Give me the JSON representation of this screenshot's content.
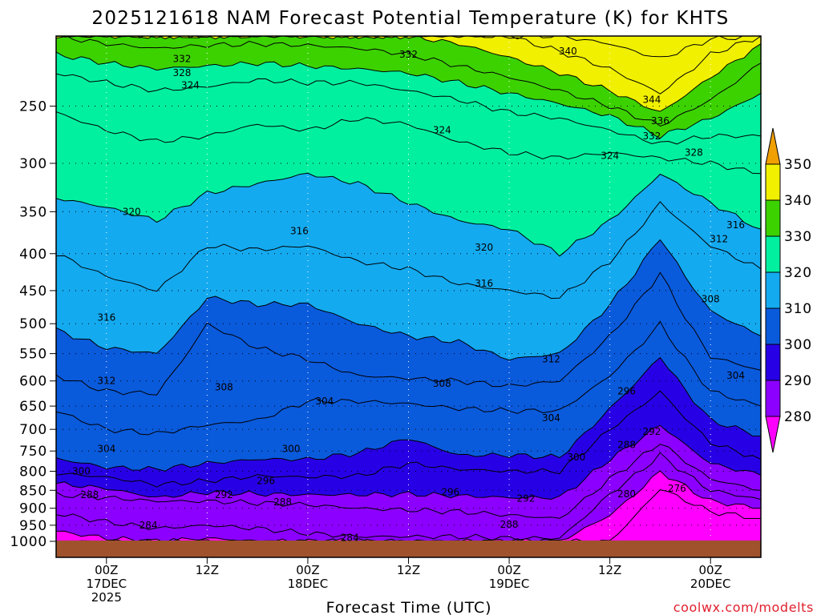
{
  "chart_data": {
    "type": "heatmap",
    "title": "2025121618 NAM Forecast Potential Temperature (K) for KHTS",
    "xlabel": "Forecast Time (UTC)",
    "ylabel": "",
    "watermark": "coolwx.com/modelts",
    "y_scale": "log-pressure",
    "ylim": [
      1000,
      200
    ],
    "yticks": [
      "250",
      "300",
      "350",
      "400",
      "450",
      "500",
      "550",
      "600",
      "650",
      "700",
      "750",
      "800",
      "850",
      "900",
      "950",
      "1000"
    ],
    "x_ticks": [
      {
        "hour": 6,
        "label1": "00Z",
        "label2": "17DEC",
        "label3": "2025"
      },
      {
        "hour": 18,
        "label1": "12Z",
        "label2": "",
        "label3": ""
      },
      {
        "hour": 30,
        "label1": "00Z",
        "label2": "18DEC",
        "label3": ""
      },
      {
        "hour": 42,
        "label1": "12Z",
        "label2": "",
        "label3": ""
      },
      {
        "hour": 54,
        "label1": "00Z",
        "label2": "19DEC",
        "label3": ""
      },
      {
        "hour": 66,
        "label1": "12Z",
        "label2": "",
        "label3": ""
      },
      {
        "hour": 78,
        "label1": "00Z",
        "label2": "20DEC",
        "label3": ""
      }
    ],
    "xlim": [
      0,
      84
    ],
    "colorbar": {
      "labels": [
        "280",
        "290",
        "300",
        "310",
        "320",
        "330",
        "340",
        "350"
      ],
      "bands": [
        {
          "from": 270,
          "to": 280,
          "color": "#ff00ff"
        },
        {
          "from": 280,
          "to": 290,
          "color": "#8c00ff"
        },
        {
          "from": 290,
          "to": 300,
          "color": "#2800e6"
        },
        {
          "from": 300,
          "to": 310,
          "color": "#0a5adc"
        },
        {
          "from": 310,
          "to": 320,
          "color": "#14aaf0"
        },
        {
          "from": 320,
          "to": 330,
          "color": "#00f0a0"
        },
        {
          "from": 330,
          "to": 340,
          "color": "#3cd200"
        },
        {
          "from": 340,
          "to": 350,
          "color": "#f0f000"
        },
        {
          "from": 350,
          "to": 360,
          "color": "#f0a000"
        }
      ]
    },
    "contour_interval_K": 4,
    "ground_color": "#a0522d",
    "theta_profile_hours": [
      0,
      6,
      12,
      18,
      24,
      30,
      36,
      42,
      48,
      54,
      60,
      66,
      72,
      78,
      84
    ],
    "theta_contours": [
      {
        "level": 276,
        "p": [
          1000,
          1000,
          1000,
          1000,
          1000,
          1000,
          1000,
          1000,
          1000,
          1000,
          1000,
          1000,
          845,
          910,
          930
        ]
      },
      {
        "level": 280,
        "p": [
          968,
          990,
          1000,
          990,
          1000,
          1000,
          1000,
          1000,
          1000,
          1000,
          1000,
          920,
          800,
          880,
          900
        ]
      },
      {
        "level": 284,
        "p": [
          915,
          940,
          960,
          950,
          960,
          975,
          985,
          985,
          985,
          990,
          990,
          860,
          760,
          850,
          875
        ]
      },
      {
        "level": 288,
        "p": [
          862,
          870,
          880,
          880,
          885,
          890,
          900,
          905,
          910,
          920,
          930,
          820,
          730,
          820,
          850
        ]
      },
      {
        "level": 292,
        "p": [
          832,
          845,
          870,
          855,
          860,
          862,
          862,
          860,
          865,
          870,
          870,
          770,
          690,
          780,
          810
        ]
      },
      {
        "level": 296,
        "p": [
          805,
          815,
          835,
          825,
          812,
          815,
          812,
          780,
          795,
          800,
          800,
          700,
          620,
          730,
          770
        ]
      },
      {
        "level": 300,
        "p": [
          768,
          790,
          795,
          780,
          770,
          770,
          755,
          720,
          760,
          760,
          765,
          655,
          555,
          680,
          715
        ]
      },
      {
        "level": 304,
        "p": [
          660,
          700,
          710,
          690,
          680,
          640,
          640,
          645,
          655,
          660,
          660,
          590,
          500,
          620,
          650
        ]
      },
      {
        "level": 308,
        "p": [
          590,
          620,
          625,
          500,
          540,
          560,
          590,
          595,
          600,
          610,
          600,
          520,
          425,
          555,
          580
        ]
      },
      {
        "level": 312,
        "p": [
          510,
          540,
          550,
          460,
          470,
          470,
          500,
          520,
          530,
          560,
          550,
          470,
          380,
          480,
          520
        ]
      },
      {
        "level": 316,
        "p": [
          400,
          430,
          450,
          390,
          395,
          390,
          410,
          420,
          440,
          450,
          460,
          410,
          340,
          390,
          420
        ]
      },
      {
        "level": 320,
        "p": [
          335,
          345,
          360,
          330,
          320,
          310,
          320,
          340,
          360,
          370,
          400,
          360,
          310,
          340,
          370
        ]
      },
      {
        "level": 324,
        "p": [
          255,
          270,
          280,
          275,
          265,
          270,
          260,
          265,
          280,
          290,
          295,
          290,
          295,
          300,
          310
        ]
      },
      {
        "level": 328,
        "p": [
          225,
          232,
          238,
          235,
          230,
          232,
          232,
          238,
          245,
          255,
          260,
          270,
          282,
          275,
          275
        ]
      },
      {
        "level": 332,
        "p": [
          212,
          218,
          222,
          220,
          218,
          220,
          222,
          225,
          232,
          240,
          248,
          258,
          275,
          260,
          240
        ]
      },
      {
        "level": 336,
        "p": [
          200,
          205,
          208,
          206,
          205,
          206,
          208,
          212,
          220,
          228,
          238,
          250,
          266,
          245,
          218
        ]
      },
      {
        "level": 340,
        "p": [
          200,
          200,
          200,
          200,
          200,
          200,
          200,
          200,
          205,
          214,
          225,
          238,
          255,
          228,
          205
        ]
      },
      {
        "level": 344,
        "p": [
          200,
          200,
          200,
          200,
          200,
          200,
          200,
          200,
          200,
          200,
          210,
          222,
          240,
          212,
          200
        ]
      },
      {
        "level": 348,
        "p": [
          200,
          200,
          200,
          200,
          200,
          200,
          200,
          200,
          200,
          200,
          200,
          205,
          215,
          202,
          200
        ]
      }
    ],
    "contour_labels": [
      {
        "text": "332",
        "hour": 15,
        "p": 215
      },
      {
        "text": "328",
        "hour": 15,
        "p": 225
      },
      {
        "text": "324",
        "hour": 16,
        "p": 234
      },
      {
        "text": "332",
        "hour": 42,
        "p": 212
      },
      {
        "text": "340",
        "hour": 61,
        "p": 210
      },
      {
        "text": "344",
        "hour": 71,
        "p": 245
      },
      {
        "text": "336",
        "hour": 72,
        "p": 262
      },
      {
        "text": "332",
        "hour": 71,
        "p": 275
      },
      {
        "text": "328",
        "hour": 76,
        "p": 290
      },
      {
        "text": "324",
        "hour": 46,
        "p": 270
      },
      {
        "text": "324",
        "hour": 66,
        "p": 293
      },
      {
        "text": "320",
        "hour": 9,
        "p": 350
      },
      {
        "text": "316",
        "hour": 29,
        "p": 372
      },
      {
        "text": "320",
        "hour": 51,
        "p": 392
      },
      {
        "text": "316",
        "hour": 81,
        "p": 365
      },
      {
        "text": "312",
        "hour": 79,
        "p": 382
      },
      {
        "text": "316",
        "hour": 51,
        "p": 440
      },
      {
        "text": "316",
        "hour": 6,
        "p": 490
      },
      {
        "text": "308",
        "hour": 78,
        "p": 462
      },
      {
        "text": "312",
        "hour": 59,
        "p": 560
      },
      {
        "text": "312",
        "hour": 6,
        "p": 600
      },
      {
        "text": "308",
        "hour": 20,
        "p": 612
      },
      {
        "text": "308",
        "hour": 46,
        "p": 605
      },
      {
        "text": "304",
        "hour": 81,
        "p": 590
      },
      {
        "text": "304",
        "hour": 32,
        "p": 640
      },
      {
        "text": "304",
        "hour": 59,
        "p": 675
      },
      {
        "text": "296",
        "hour": 68,
        "p": 620
      },
      {
        "text": "304",
        "hour": 6,
        "p": 745
      },
      {
        "text": "300",
        "hour": 28,
        "p": 745
      },
      {
        "text": "292",
        "hour": 71,
        "p": 705
      },
      {
        "text": "288",
        "hour": 68,
        "p": 735
      },
      {
        "text": "300",
        "hour": 3,
        "p": 800
      },
      {
        "text": "300",
        "hour": 62,
        "p": 765
      },
      {
        "text": "296",
        "hour": 25,
        "p": 825
      },
      {
        "text": "288",
        "hour": 4,
        "p": 862
      },
      {
        "text": "292",
        "hour": 20,
        "p": 862
      },
      {
        "text": "288",
        "hour": 27,
        "p": 882
      },
      {
        "text": "296",
        "hour": 47,
        "p": 855
      },
      {
        "text": "292",
        "hour": 56,
        "p": 872
      },
      {
        "text": "280",
        "hour": 68,
        "p": 860
      },
      {
        "text": "276",
        "hour": 74,
        "p": 845
      },
      {
        "text": "284",
        "hour": 11,
        "p": 950
      },
      {
        "text": "284",
        "hour": 35,
        "p": 988
      },
      {
        "text": "288",
        "hour": 54,
        "p": 948
      }
    ]
  }
}
